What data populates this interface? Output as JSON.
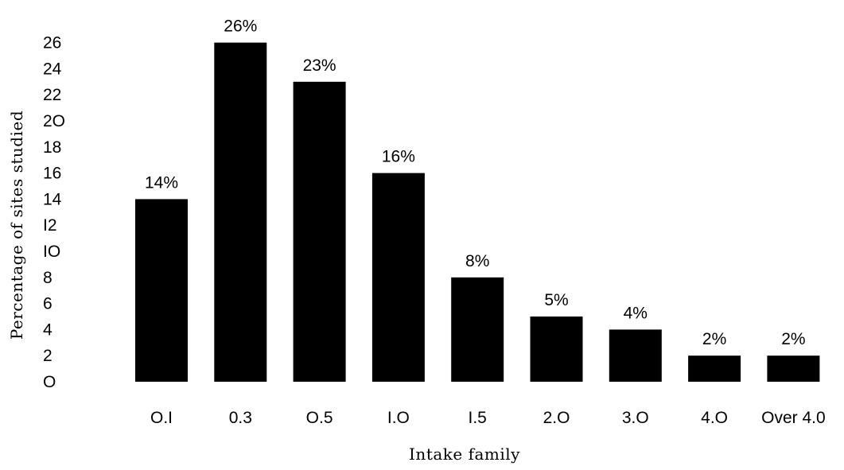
{
  "chart_data": {
    "type": "bar",
    "title": "",
    "xlabel": "Intake family",
    "ylabel": "Percentage of sites studied",
    "categories": [
      "O.I",
      "0.3",
      "O.5",
      "I.O",
      "I.5",
      "2.O",
      "3.O",
      "4.O",
      "Over 4.0"
    ],
    "values": [
      14,
      26,
      23,
      16,
      8,
      5,
      4,
      2,
      2
    ],
    "data_labels": [
      "14%",
      "26%",
      "23%",
      "16%",
      "8%",
      "5%",
      "4%",
      "2%",
      "2%"
    ],
    "yticks": [
      "O",
      "2",
      "4",
      "6",
      "8",
      "IO",
      "I2",
      "14",
      "16",
      "18",
      "2O",
      "22",
      "24",
      "26"
    ],
    "ylim": [
      0,
      26
    ],
    "grid": false,
    "legend": "none",
    "bar_color": "#000000"
  }
}
